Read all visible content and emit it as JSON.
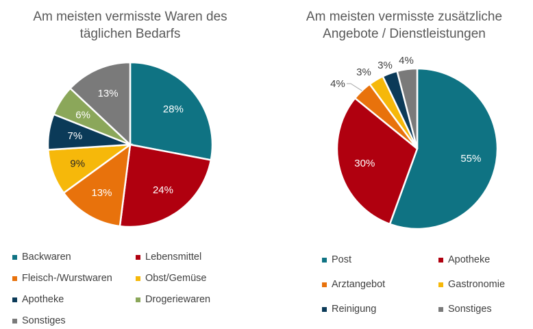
{
  "chart_data": [
    {
      "type": "pie",
      "title": "Am meisten vermisste Waren des täglichen Bedarfs",
      "categories": [
        "Backwaren",
        "Lebensmittel",
        "Fleisch-/Wurstwaren",
        "Obst/Gemüse",
        "Apotheke",
        "Drogeriewaren",
        "Sonstiges"
      ],
      "values": [
        28,
        24,
        13,
        9,
        7,
        6,
        13
      ],
      "labels": [
        "28%",
        "24%",
        "13%",
        "9%",
        "7%",
        "6%",
        "13%"
      ],
      "colors": [
        "#0f7383",
        "#b0000f",
        "#e8720c",
        "#f6b80a",
        "#0b3a58",
        "#8ba75a",
        "#7a7a7a"
      ],
      "label_colors": [
        "#ffffff",
        "#ffffff",
        "#ffffff",
        "#262626",
        "#ffffff",
        "#ffffff",
        "#ffffff"
      ],
      "legend": "bottom"
    },
    {
      "type": "pie",
      "title": "Am meisten vermisste zusätzliche Angebote / Dienstleistungen",
      "categories": [
        "Post",
        "Apotheke",
        "Arztangebot",
        "Gastronomie",
        "Reinigung",
        "Sonstiges"
      ],
      "values": [
        55,
        30,
        4,
        3,
        3,
        4
      ],
      "labels": [
        "55%",
        "30%",
        "4%",
        "3%",
        "3%",
        "4%"
      ],
      "colors": [
        "#0f7383",
        "#b0000f",
        "#e8720c",
        "#f6b80a",
        "#0b3a58",
        "#7a7a7a"
      ],
      "label_colors": [
        "#ffffff",
        "#ffffff",
        "#404040",
        "#404040",
        "#404040",
        "#404040"
      ],
      "legend": "bottom"
    }
  ]
}
